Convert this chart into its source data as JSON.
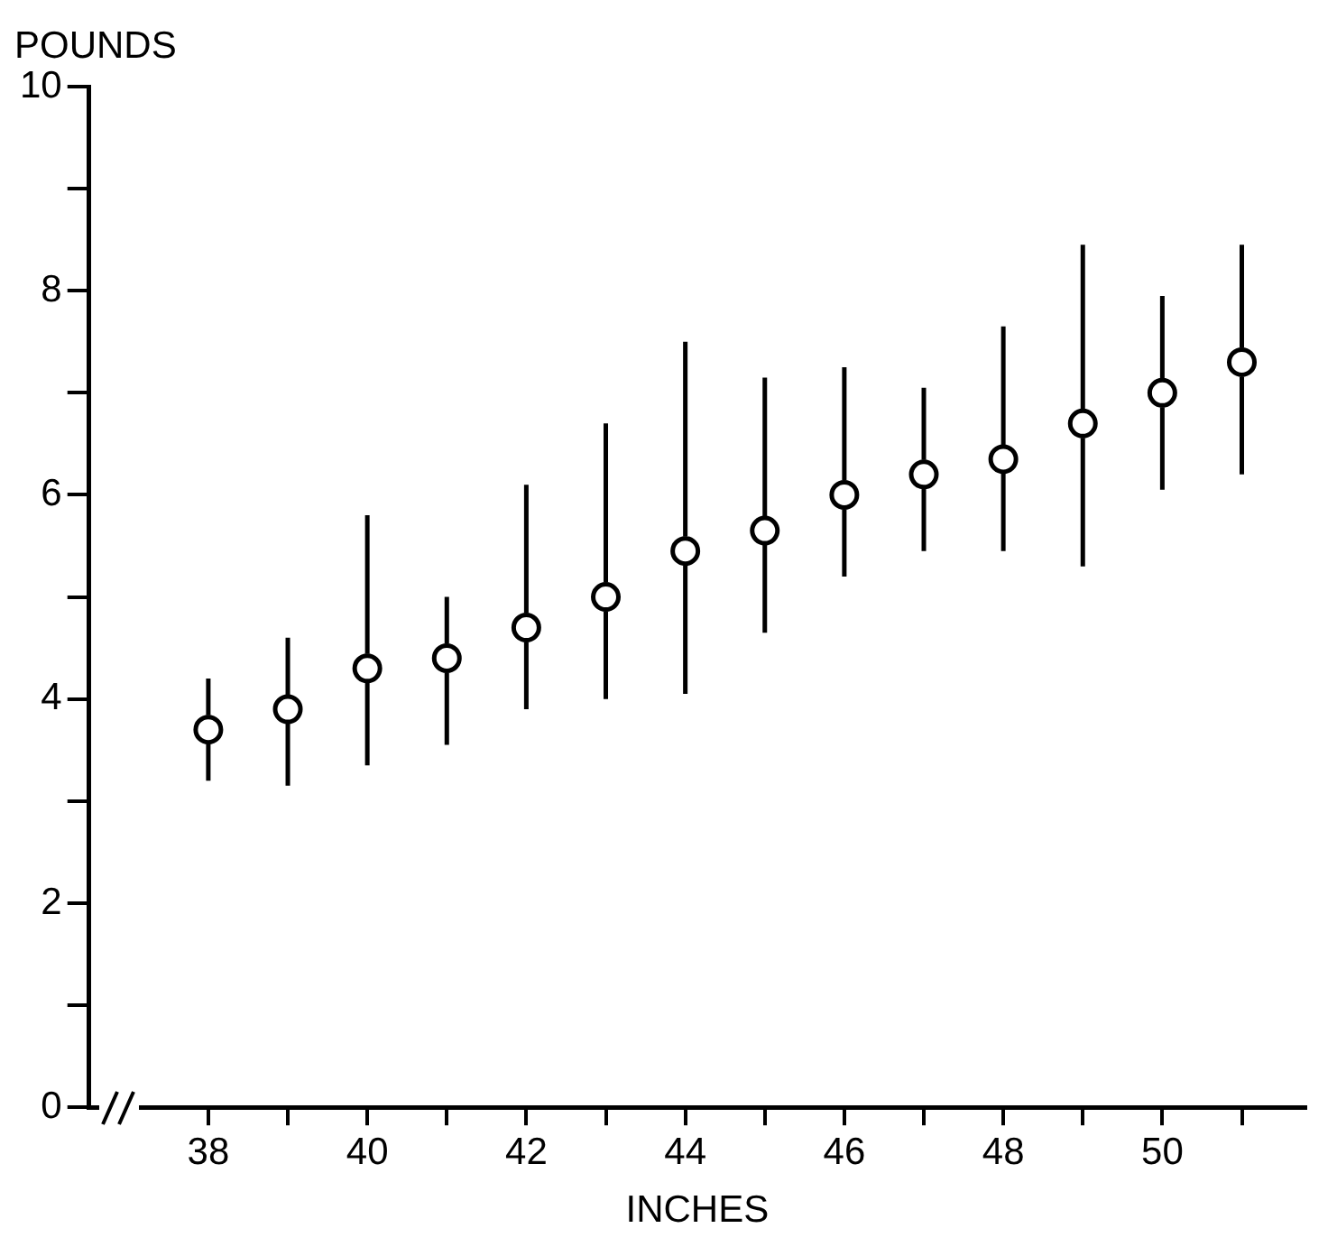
{
  "chart_data": {
    "type": "scatter",
    "xlabel": "INCHES",
    "ylabel": "POUNDS",
    "x": [
      38,
      39,
      40,
      41,
      42,
      43,
      44,
      45,
      46,
      47,
      48,
      49,
      50,
      51
    ],
    "values": [
      3.7,
      3.9,
      4.3,
      4.4,
      4.7,
      5.0,
      5.45,
      5.65,
      6.0,
      6.2,
      6.35,
      6.7,
      7.0,
      7.3
    ],
    "errors": [
      [
        3.2,
        4.2
      ],
      [
        3.15,
        4.6
      ],
      [
        3.35,
        5.8
      ],
      [
        3.55,
        5.0
      ],
      [
        3.9,
        6.1
      ],
      [
        4.0,
        6.7
      ],
      [
        4.05,
        7.5
      ],
      [
        4.65,
        7.15
      ],
      [
        5.2,
        7.25
      ],
      [
        5.45,
        7.05
      ],
      [
        5.45,
        7.65
      ],
      [
        5.3,
        8.45
      ],
      [
        6.05,
        7.95
      ],
      [
        6.2,
        8.45
      ]
    ],
    "color": "#000000",
    "marker": "circle",
    "grid": false,
    "legend": false,
    "xlim": [
      36.5,
      51.8
    ],
    "xticks": [
      38,
      {
        "value": 39,
        "label": null
      },
      40,
      {
        "value": 41,
        "label": null
      },
      42,
      {
        "value": 43,
        "label": null
      },
      44,
      {
        "value": 45,
        "label": null
      },
      46,
      {
        "value": 47,
        "label": null
      },
      48,
      {
        "value": 49,
        "label": null
      },
      50,
      {
        "value": 51,
        "label": null
      }
    ],
    "ylim": [
      0,
      10
    ],
    "yticks": [
      0,
      {
        "value": 1,
        "label": null
      },
      2,
      {
        "value": 3,
        "label": null
      },
      4,
      {
        "value": 5,
        "label": null
      },
      6,
      {
        "value": 7,
        "label": null
      },
      8,
      {
        "value": 9,
        "label": null
      },
      10
    ]
  }
}
